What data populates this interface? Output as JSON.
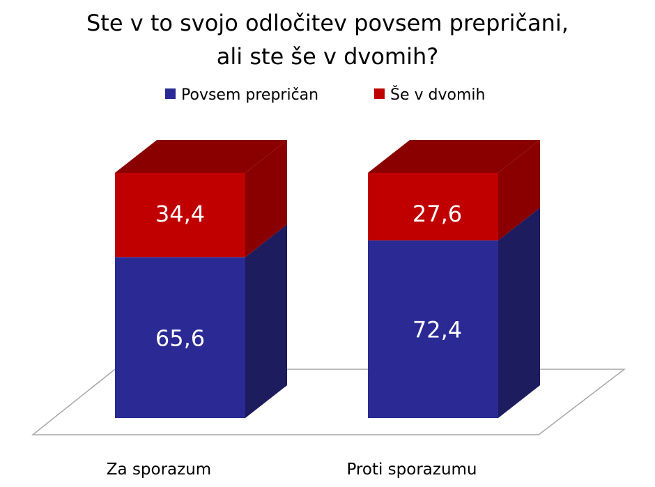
{
  "chart_data": {
    "type": "bar",
    "stacked": true,
    "three_d": true,
    "title": [
      "Ste v to svojo odločitev povsem prepričani,",
      "ali ste še v dvomih?"
    ],
    "categories": [
      "Za sporazum",
      "Proti sporazumu"
    ],
    "series": [
      {
        "name": "Povsem prepričan",
        "values": [
          65.6,
          72.4
        ],
        "labels": [
          "65,6",
          "72,4"
        ],
        "color": "#2B2A94",
        "side_color": "#1D1C5E"
      },
      {
        "name": "Še v dvomih",
        "values": [
          34.4,
          27.6
        ],
        "labels": [
          "34,4",
          "27,6"
        ],
        "color": "#C00000",
        "side_color": "#8A0000"
      }
    ],
    "ylim": [
      0,
      100
    ],
    "grid": false,
    "axes_visible": false,
    "legend_position": "top"
  }
}
